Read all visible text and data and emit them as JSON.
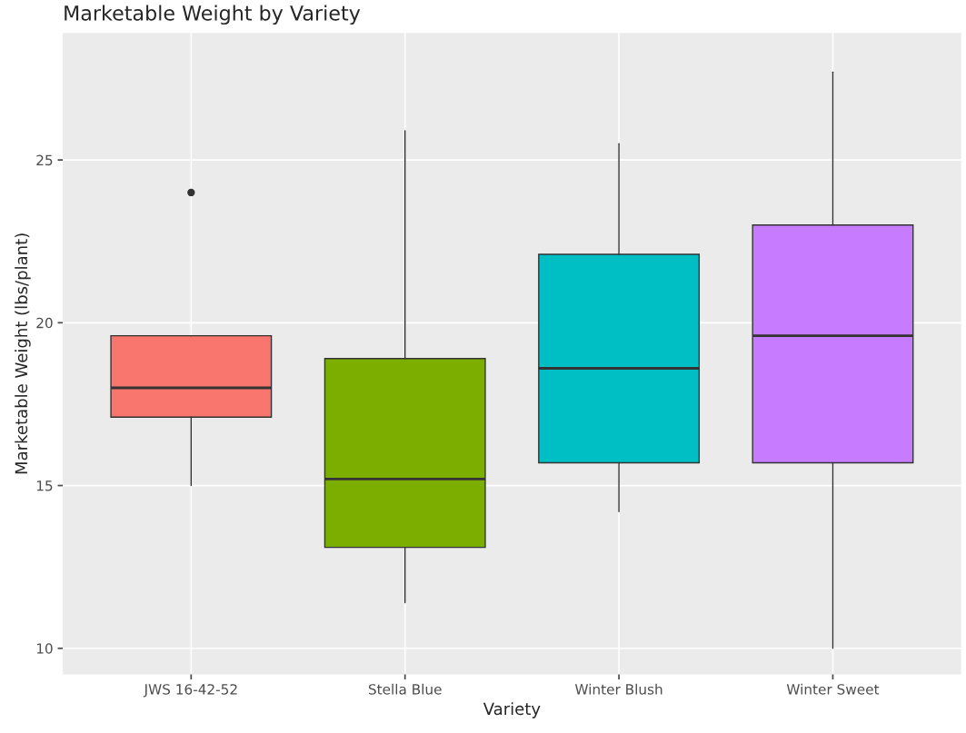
{
  "chart_data": {
    "type": "box",
    "title": "Marketable Weight by Variety",
    "xlabel": "Variety",
    "ylabel": "Marketable Weight (lbs/plant)",
    "categories": [
      "JWS 16-42-52",
      "Stella Blue",
      "Winter Blush",
      "Winter Sweet"
    ],
    "colors": [
      "#f8766d",
      "#7cae00",
      "#00bfc4",
      "#c77cff"
    ],
    "boxes": [
      {
        "low": 15.0,
        "q1": 17.1,
        "median": 18.0,
        "q3": 19.6,
        "high": 19.6,
        "outliers": [
          24.0
        ]
      },
      {
        "low": 11.4,
        "q1": 13.1,
        "median": 15.2,
        "q3": 18.9,
        "high": 25.9
      },
      {
        "low": 14.2,
        "q1": 15.7,
        "median": 18.6,
        "q3": 22.1,
        "high": 25.5
      },
      {
        "low": 10.0,
        "q1": 15.7,
        "median": 19.6,
        "q3": 23.0,
        "high": 27.7
      }
    ],
    "ylim": [
      9.2,
      28.9
    ],
    "yticks": [
      10,
      15,
      20,
      25
    ],
    "grid": true
  }
}
